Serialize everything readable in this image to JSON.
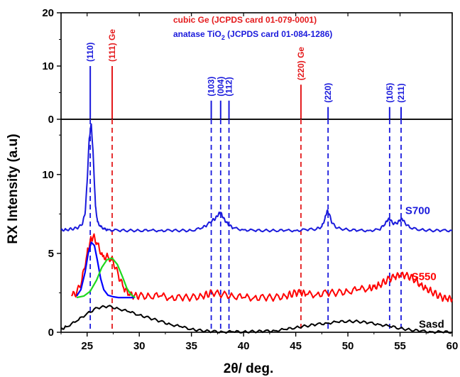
{
  "chart_data": {
    "type": "line",
    "xlabel": "2θ/ deg.",
    "ylabel": "RX Intensity (a.u)",
    "xlim": [
      22.5,
      60
    ],
    "x_ticks": [
      25,
      30,
      35,
      40,
      45,
      50,
      55,
      60
    ],
    "top_panel": {
      "ylim": [
        0,
        20
      ],
      "y_ticks": [
        0,
        10,
        20
      ],
      "legend": [
        {
          "text_main": "cubic Ge (JCPDS card 01-079-0001)",
          "text_sub": "",
          "text_tail": "",
          "color": "#e41a1c"
        },
        {
          "text_main": "anatase TiO",
          "text_sub": "2",
          "text_tail": " (JCPDS card 01-084-1286)",
          "color": "#1a1adc"
        }
      ],
      "reference_lines": [
        {
          "x": 25.3,
          "height": 10,
          "label": "(110)",
          "color": "#1a1adc"
        },
        {
          "x": 27.4,
          "height": 10,
          "label": "(111) Ge",
          "color": "#e41a1c"
        },
        {
          "x": 36.9,
          "height": 3.5,
          "label": "(103)",
          "color": "#1a1adc"
        },
        {
          "x": 37.8,
          "height": 3.5,
          "label": "(004)",
          "color": "#1a1adc"
        },
        {
          "x": 38.6,
          "height": 3.5,
          "label": "(112)",
          "color": "#1a1adc"
        },
        {
          "x": 45.5,
          "height": 6.5,
          "label": "(220) Ge",
          "color": "#e41a1c"
        },
        {
          "x": 48.1,
          "height": 2.3,
          "label": "(220)",
          "color": "#1a1adc"
        },
        {
          "x": 54.0,
          "height": 2.3,
          "label": "(105)",
          "color": "#1a1adc"
        },
        {
          "x": 55.1,
          "height": 2.3,
          "label": "(211)",
          "color": "#1a1adc"
        }
      ]
    },
    "bottom_panel": {
      "ylim": [
        0,
        13.5
      ],
      "y_ticks": [
        0,
        5,
        10
      ],
      "series": [
        {
          "name": "S700",
          "color": "#1a1adc",
          "x": [
            22.5,
            23,
            23.5,
            24,
            24.5,
            24.8,
            25.0,
            25.2,
            25.4,
            25.6,
            25.8,
            26.0,
            26.3,
            26.7,
            27,
            28,
            29,
            30,
            31,
            32,
            33,
            34,
            35,
            36,
            36.5,
            37,
            37.3,
            37.6,
            37.8,
            38.0,
            38.3,
            38.6,
            39,
            40,
            41,
            42,
            43,
            44,
            45,
            46,
            47,
            47.5,
            47.8,
            48.0,
            48.2,
            48.5,
            49,
            50,
            51,
            52,
            53,
            53.5,
            53.8,
            54.0,
            54.3,
            54.7,
            55.0,
            55.2,
            55.5,
            56,
            57,
            58,
            59,
            60
          ],
          "y": [
            6.5,
            6.5,
            6.55,
            6.6,
            6.8,
            7.5,
            9.5,
            12.3,
            13.2,
            11.0,
            8.0,
            7.0,
            6.7,
            6.55,
            6.5,
            6.45,
            6.45,
            6.45,
            6.45,
            6.45,
            6.45,
            6.45,
            6.45,
            6.6,
            6.8,
            7.1,
            7.2,
            7.5,
            7.6,
            7.3,
            7.0,
            6.8,
            6.6,
            6.5,
            6.45,
            6.45,
            6.45,
            6.45,
            6.45,
            6.5,
            6.55,
            6.7,
            7.2,
            7.7,
            7.5,
            6.9,
            6.6,
            6.5,
            6.45,
            6.45,
            6.5,
            6.8,
            7.1,
            7.2,
            6.9,
            6.9,
            7.1,
            7.2,
            6.9,
            6.6,
            6.5,
            6.45,
            6.45,
            6.45
          ]
        },
        {
          "name": "S550",
          "color": "#ff0000",
          "x": [
            23.5,
            24,
            24.5,
            25,
            25.3,
            25.6,
            26,
            26.5,
            27,
            27.5,
            28,
            28.5,
            29,
            29.5,
            30,
            31,
            32,
            33,
            34,
            35,
            36,
            36.5,
            37,
            38,
            39,
            40,
            41,
            42,
            43,
            44,
            44.5,
            45,
            45.5,
            46,
            47,
            48,
            49,
            50,
            51,
            52,
            52.5,
            53,
            53.5,
            54,
            54.5,
            55,
            55.5,
            56,
            56.5,
            57,
            57.5,
            58,
            58.5,
            59,
            59.5,
            60
          ],
          "y": [
            2.3,
            2.5,
            3.3,
            5.0,
            5.8,
            6.1,
            5.6,
            4.8,
            4.8,
            4.5,
            3.6,
            2.8,
            2.4,
            2.3,
            2.3,
            2.3,
            2.3,
            2.2,
            2.2,
            2.2,
            2.3,
            2.4,
            2.5,
            2.4,
            2.3,
            2.2,
            2.2,
            2.2,
            2.2,
            2.3,
            2.4,
            2.5,
            2.5,
            2.4,
            2.4,
            2.5,
            2.5,
            2.6,
            2.7,
            2.8,
            2.9,
            3.0,
            3.2,
            3.4,
            3.5,
            3.6,
            3.6,
            3.5,
            3.3,
            3.0,
            2.8,
            2.6,
            2.4,
            2.2,
            2.1,
            2.1
          ]
        },
        {
          "name": "Sasd",
          "color": "#000000",
          "x": [
            22.5,
            23,
            24,
            25,
            26,
            27,
            28,
            29,
            30,
            31,
            32,
            33,
            34,
            35,
            36,
            37,
            38,
            39,
            40,
            41,
            42,
            43,
            44,
            45,
            46,
            47,
            48,
            49,
            50,
            51,
            52,
            53,
            54,
            55,
            56,
            57,
            58,
            59,
            60
          ],
          "y": [
            0.2,
            0.35,
            0.7,
            1.2,
            1.55,
            1.65,
            1.5,
            1.3,
            1.1,
            0.9,
            0.7,
            0.5,
            0.35,
            0.2,
            0.1,
            0.05,
            0.03,
            0.03,
            0.03,
            0.05,
            0.07,
            0.1,
            0.18,
            0.3,
            0.4,
            0.5,
            0.58,
            0.65,
            0.7,
            0.68,
            0.6,
            0.5,
            0.38,
            0.25,
            0.15,
            0.08,
            0.03,
            0.02,
            0.02
          ]
        },
        {
          "name": "",
          "color": "#0000ff",
          "x": [
            24.0,
            24.4,
            24.8,
            25.1,
            25.4,
            25.7,
            26.0,
            26.3,
            26.6,
            27.0,
            27.5,
            28.0,
            28.5,
            29.0,
            29.5
          ],
          "y": [
            2.3,
            2.7,
            3.8,
            5.0,
            5.7,
            5.5,
            4.5,
            3.4,
            2.7,
            2.35,
            2.25,
            2.2,
            2.2,
            2.2,
            2.2
          ]
        },
        {
          "name": "",
          "color": "#1fd81f",
          "x": [
            24.0,
            24.7,
            25.3,
            25.9,
            26.4,
            26.9,
            27.4,
            27.9,
            28.4,
            28.8,
            29.2,
            29.6
          ],
          "y": [
            2.2,
            2.3,
            2.6,
            3.3,
            4.1,
            4.6,
            4.7,
            4.3,
            3.5,
            2.8,
            2.4,
            2.2
          ]
        }
      ],
      "series_labels": [
        {
          "text": "S700",
          "color": "#1a1adc",
          "x": 55.5,
          "y": 7.5
        },
        {
          "text": "S550",
          "color": "#ff0000",
          "x": 56.1,
          "y": 3.3
        },
        {
          "text": "Sasd",
          "color": "#000000",
          "x": 56.8,
          "y": 0.3
        }
      ],
      "dashed_lines": [
        {
          "x": 25.3,
          "color": "#1a1adc"
        },
        {
          "x": 27.4,
          "color": "#e41a1c"
        },
        {
          "x": 36.9,
          "color": "#1a1adc"
        },
        {
          "x": 37.8,
          "color": "#1a1adc"
        },
        {
          "x": 38.6,
          "color": "#1a1adc"
        },
        {
          "x": 45.5,
          "color": "#e41a1c"
        },
        {
          "x": 48.1,
          "color": "#1a1adc"
        },
        {
          "x": 54.0,
          "color": "#1a1adc"
        },
        {
          "x": 55.1,
          "color": "#1a1adc"
        }
      ]
    }
  }
}
